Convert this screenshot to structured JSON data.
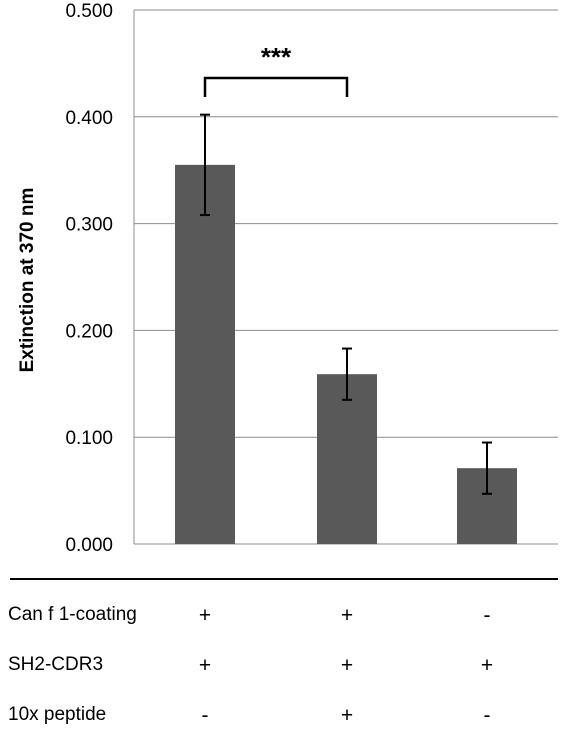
{
  "chart_data": {
    "type": "bar",
    "categories": [
      "",
      "",
      ""
    ],
    "values": [
      0.355,
      0.159,
      0.071
    ],
    "error": [
      0.047,
      0.024,
      0.024
    ],
    "ylabel": "Extinction at 370 nm",
    "ylim": [
      0,
      0.5
    ],
    "yticks": [
      "0.000",
      "0.100",
      "0.200",
      "0.300",
      "0.400",
      "0.500"
    ],
    "grid": true,
    "bar_color": "#595959",
    "significance": {
      "label": "***",
      "between": [
        0,
        1
      ]
    }
  },
  "conditions": {
    "rows": [
      {
        "label": "Can f 1-coating",
        "values": [
          "+",
          "+",
          "-"
        ]
      },
      {
        "label": "SH2-CDR3",
        "values": [
          "+",
          "+",
          "+"
        ]
      },
      {
        "label": "10x peptide",
        "values": [
          "-",
          "+",
          "-"
        ]
      }
    ]
  }
}
